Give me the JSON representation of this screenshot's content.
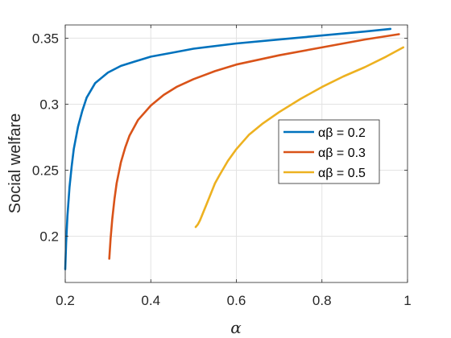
{
  "chart_data": {
    "type": "line",
    "xlabel": "α",
    "ylabel": "Social welfare",
    "xlim": [
      0.2,
      1.0
    ],
    "ylim": [
      0.165,
      0.36
    ],
    "xticks": [
      0.2,
      0.4,
      0.6,
      0.8,
      1.0
    ],
    "xtick_labels": [
      "0.2",
      "0.4",
      "0.6",
      "0.8",
      "1"
    ],
    "yticks": [
      0.2,
      0.25,
      0.3,
      0.35
    ],
    "ytick_labels": [
      "0.2",
      "0.25",
      "0.3",
      "0.35"
    ],
    "grid": true,
    "legend_position": "right",
    "series": [
      {
        "name": "αβ = 0.2",
        "color": "#0072BD",
        "x": [
          0.2,
          0.202,
          0.205,
          0.21,
          0.215,
          0.22,
          0.23,
          0.24,
          0.25,
          0.27,
          0.3,
          0.33,
          0.36,
          0.4,
          0.45,
          0.5,
          0.6,
          0.7,
          0.8,
          0.9,
          0.96
        ],
        "y": [
          0.175,
          0.195,
          0.215,
          0.237,
          0.253,
          0.266,
          0.283,
          0.295,
          0.305,
          0.316,
          0.324,
          0.329,
          0.332,
          0.336,
          0.339,
          0.342,
          0.346,
          0.349,
          0.352,
          0.355,
          0.357
        ]
      },
      {
        "name": "αβ = 0.3",
        "color": "#D95319",
        "x": [
          0.303,
          0.306,
          0.31,
          0.315,
          0.32,
          0.33,
          0.34,
          0.35,
          0.37,
          0.4,
          0.43,
          0.46,
          0.5,
          0.55,
          0.6,
          0.7,
          0.8,
          0.9,
          0.98
        ],
        "y": [
          0.183,
          0.198,
          0.213,
          0.228,
          0.24,
          0.256,
          0.267,
          0.276,
          0.288,
          0.299,
          0.307,
          0.313,
          0.319,
          0.325,
          0.33,
          0.337,
          0.343,
          0.349,
          0.353
        ]
      },
      {
        "name": "αβ = 0.5",
        "color": "#EDB120",
        "x": [
          0.505,
          0.51,
          0.515,
          0.52,
          0.53,
          0.54,
          0.55,
          0.56,
          0.58,
          0.6,
          0.63,
          0.66,
          0.7,
          0.75,
          0.8,
          0.85,
          0.9,
          0.95,
          0.99
        ],
        "y": [
          0.207,
          0.209,
          0.212,
          0.216,
          0.224,
          0.232,
          0.24,
          0.246,
          0.257,
          0.266,
          0.277,
          0.285,
          0.294,
          0.304,
          0.313,
          0.321,
          0.328,
          0.336,
          0.343
        ]
      }
    ]
  }
}
